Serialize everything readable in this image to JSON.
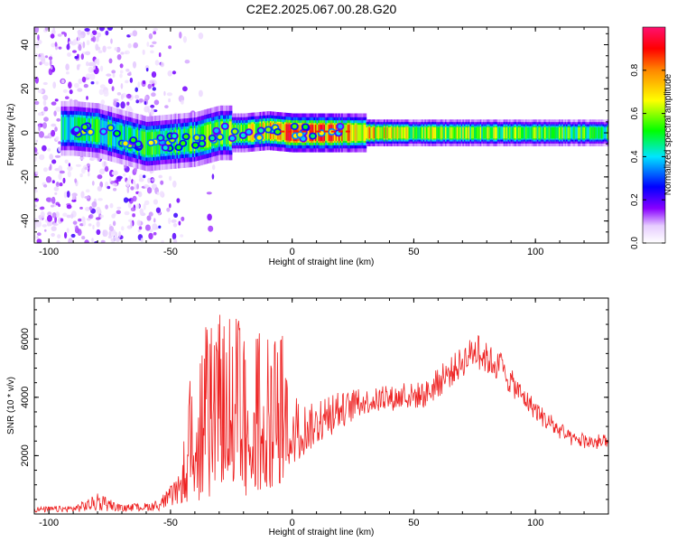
{
  "title": "C2E2.2025.067.00.28.G20",
  "chart_data": [
    {
      "type": "heatmap",
      "xlabel": "Height of straight line (km)",
      "ylabel": "Frequency (Hz)",
      "xlim": [
        -106,
        130
      ],
      "ylim": [
        -50,
        48
      ],
      "xticks": [
        -100,
        -50,
        0,
        50,
        100
      ],
      "yticks": [
        -40,
        -20,
        0,
        20,
        40
      ],
      "colorbar": {
        "label": "Normalized spectral amplitude",
        "range": [
          0,
          1
        ],
        "ticks": [
          "0.0",
          "0.2",
          "0.4",
          "0.6",
          "0.8"
        ],
        "colors": [
          "#ffffff",
          "#8800ff",
          "#0000ff",
          "#00e5ff",
          "#00ff00",
          "#ffff00",
          "#ff8800",
          "#ff0000",
          "#ff1070"
        ]
      },
      "ridge": [
        {
          "x": -90,
          "f": 2,
          "a": 0.45
        },
        {
          "x": -80,
          "f": 1,
          "a": 0.5
        },
        {
          "x": -70,
          "f": -2,
          "a": 0.45
        },
        {
          "x": -60,
          "f": -5,
          "a": 0.5
        },
        {
          "x": -50,
          "f": -4,
          "a": 0.5
        },
        {
          "x": -40,
          "f": -3,
          "a": 0.55
        },
        {
          "x": -30,
          "f": 0,
          "a": 0.55
        },
        {
          "x": -20,
          "f": 0,
          "a": 0.6
        },
        {
          "x": -10,
          "f": 1,
          "a": 0.7
        },
        {
          "x": 0,
          "f": 0,
          "a": 0.85
        },
        {
          "x": 20,
          "f": 0,
          "a": 0.8
        },
        {
          "x": 50,
          "f": 0,
          "a": 0.6
        },
        {
          "x": 100,
          "f": 0,
          "a": 0.55
        },
        {
          "x": 130,
          "f": 0,
          "a": 0.5
        }
      ]
    },
    {
      "type": "line",
      "xlabel": "Height of straight line (km)",
      "ylabel": "SNR (10 * v/v)",
      "xlim": [
        -106,
        130
      ],
      "ylim": [
        0,
        7400
      ],
      "xticks": [
        -100,
        -50,
        0,
        50,
        100
      ],
      "yticks": [
        2000,
        4000,
        6000
      ],
      "series": [
        {
          "color": "#ee2222",
          "envelope": [
            {
              "x": -106,
              "lo": 50,
              "hi": 250
            },
            {
              "x": -90,
              "lo": 50,
              "hi": 300
            },
            {
              "x": -80,
              "lo": 80,
              "hi": 700
            },
            {
              "x": -70,
              "lo": 80,
              "hi": 300
            },
            {
              "x": -55,
              "lo": 100,
              "hi": 450
            },
            {
              "x": -46,
              "lo": 300,
              "hi": 1400
            },
            {
              "x": -42,
              "lo": 400,
              "hi": 4800
            },
            {
              "x": -38,
              "lo": 300,
              "hi": 6500
            },
            {
              "x": -34,
              "lo": 200,
              "hi": 7300
            },
            {
              "x": -28,
              "lo": 200,
              "hi": 6900
            },
            {
              "x": -22,
              "lo": 200,
              "hi": 6800
            },
            {
              "x": -15,
              "lo": 400,
              "hi": 6700
            },
            {
              "x": -10,
              "lo": 800,
              "hi": 6000
            },
            {
              "x": -4,
              "lo": 1000,
              "hi": 6300
            },
            {
              "x": 0,
              "lo": 1600,
              "hi": 4000
            },
            {
              "x": 10,
              "lo": 2300,
              "hi": 3800
            },
            {
              "x": 20,
              "lo": 2900,
              "hi": 4200
            },
            {
              "x": 30,
              "lo": 3400,
              "hi": 4300
            },
            {
              "x": 40,
              "lo": 3500,
              "hi": 4400
            },
            {
              "x": 55,
              "lo": 3600,
              "hi": 4600
            },
            {
              "x": 65,
              "lo": 4300,
              "hi": 5400
            },
            {
              "x": 75,
              "lo": 5000,
              "hi": 6200
            },
            {
              "x": 85,
              "lo": 4500,
              "hi": 5600
            },
            {
              "x": 95,
              "lo": 3600,
              "hi": 4400
            },
            {
              "x": 105,
              "lo": 2800,
              "hi": 3500
            },
            {
              "x": 115,
              "lo": 2300,
              "hi": 2800
            },
            {
              "x": 130,
              "lo": 2100,
              "hi": 2700
            }
          ]
        }
      ]
    }
  ]
}
